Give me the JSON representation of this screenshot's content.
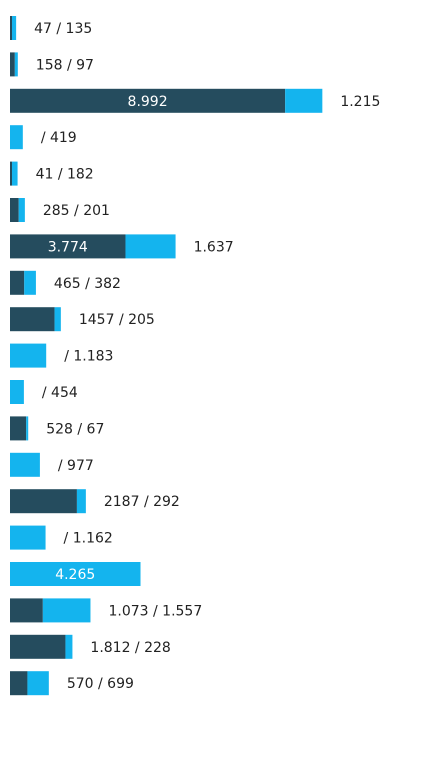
{
  "chart_data": {
    "type": "bar",
    "orientation": "horizontal",
    "stacked": true,
    "grid": false,
    "legend": "none",
    "colors": {
      "dark": "#254c5e",
      "light": "#14b4ee"
    },
    "rows": [
      {
        "dark": 47,
        "light": 135,
        "label": "47 / 135"
      },
      {
        "dark": 158,
        "light": 97,
        "label": "158 / 97"
      },
      {
        "dark": 8992,
        "light": 1215,
        "inner_label": "8.992",
        "label": "1.215"
      },
      {
        "dark": 0,
        "light": 419,
        "label": "/ 419"
      },
      {
        "dark": 41,
        "light": 182,
        "label": "41 / 182"
      },
      {
        "dark": 285,
        "light": 201,
        "label": "285 / 201"
      },
      {
        "dark": 3774,
        "light": 1637,
        "inner_label": "3.774",
        "label": "1.637"
      },
      {
        "dark": 465,
        "light": 382,
        "label": "465 / 382"
      },
      {
        "dark": 1457,
        "light": 205,
        "label": "1457 / 205"
      },
      {
        "dark": 0,
        "light": 1183,
        "label": "/ 1.183"
      },
      {
        "dark": 0,
        "light": 454,
        "label": "/ 454"
      },
      {
        "dark": 528,
        "light": 67,
        "label": "528 / 67"
      },
      {
        "dark": 0,
        "light": 977,
        "label": "/ 977"
      },
      {
        "dark": 2187,
        "light": 292,
        "label": "2187 / 292"
      },
      {
        "dark": 0,
        "light": 1162,
        "label": "/ 1.162"
      },
      {
        "dark": 0,
        "light": 4265,
        "inner_label": "4.265",
        "label": ""
      },
      {
        "dark": 1073,
        "light": 1557,
        "label": "1.073 / 1.557"
      },
      {
        "dark": 1812,
        "light": 228,
        "label": "1.812 / 228"
      },
      {
        "dark": 570,
        "light": 699,
        "label": "570 / 699"
      }
    ]
  }
}
